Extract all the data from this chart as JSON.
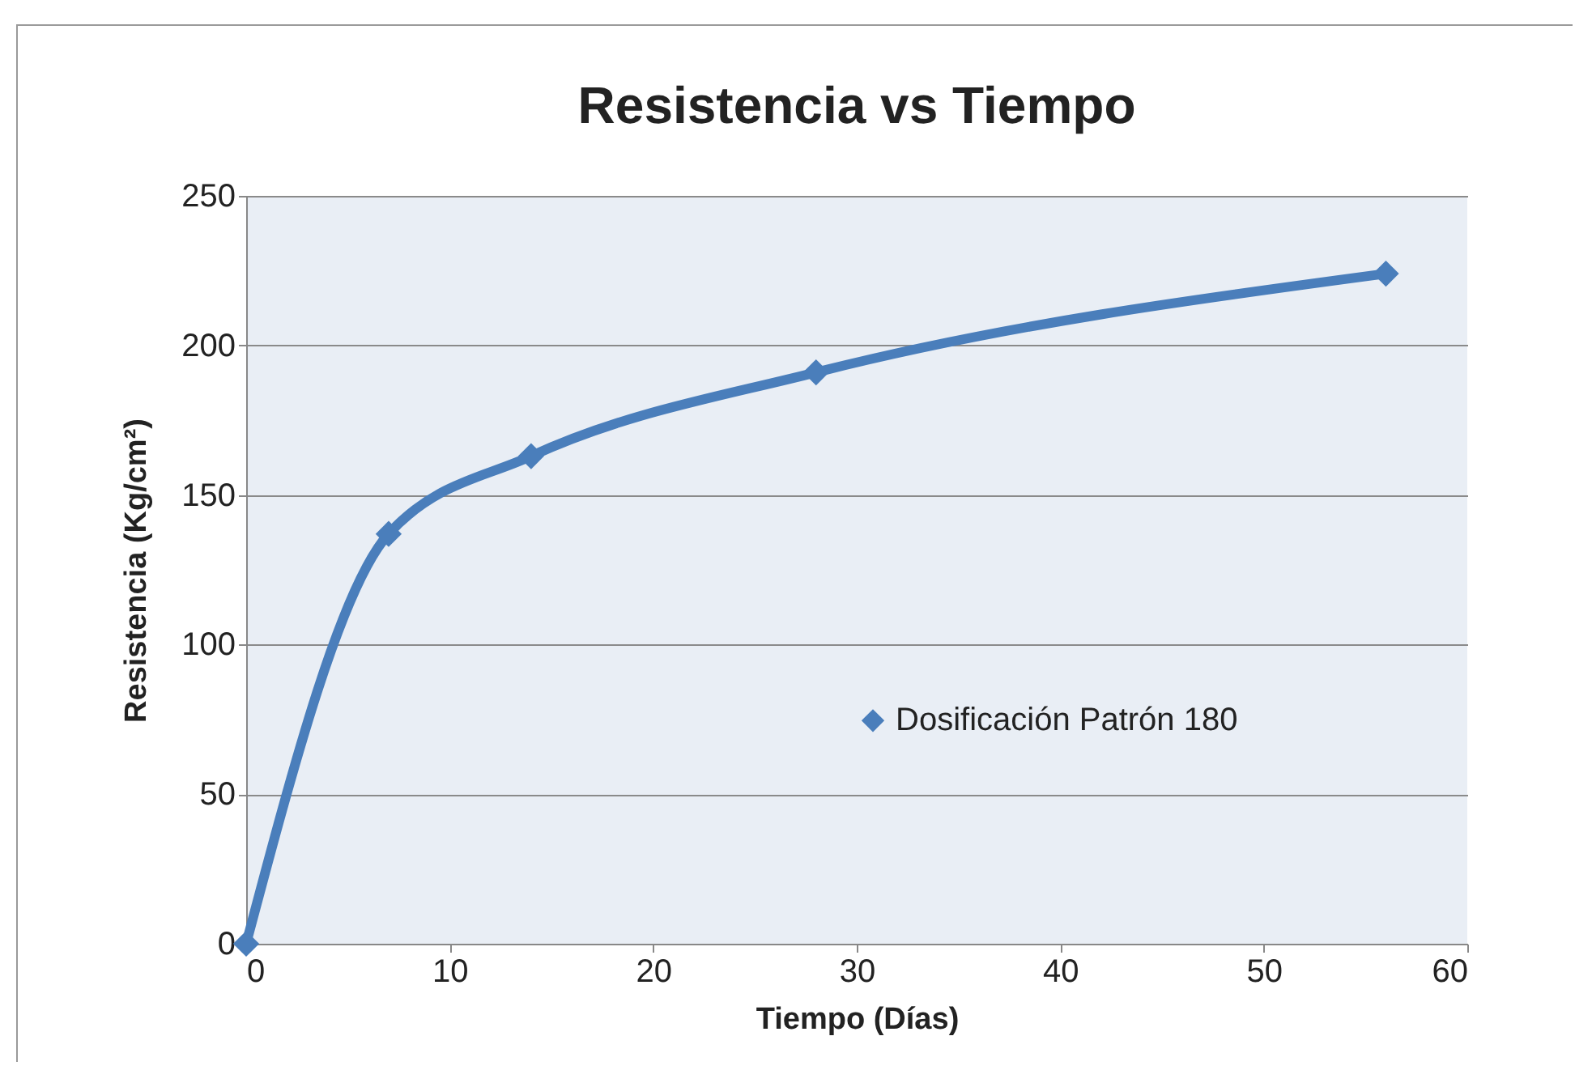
{
  "chart_data": {
    "type": "line",
    "title": "Resistencia vs Tiempo",
    "xlabel": "Tiempo (Días)",
    "ylabel": "Resistencia (Kg/cm²)",
    "x": [
      0,
      7,
      14,
      28,
      56
    ],
    "series": [
      {
        "name": "Dosificación Patrón 180",
        "color": "#4a7ebb",
        "values": [
          0,
          137,
          163,
          191,
          224
        ]
      }
    ],
    "xlim": [
      0,
      60
    ],
    "xticks": [
      0,
      10,
      20,
      30,
      40,
      50,
      60
    ],
    "ylim": [
      0,
      250
    ],
    "yticks": [
      0,
      50,
      100,
      150,
      200,
      250
    ],
    "grid": "y",
    "legend": "right",
    "marker": "diamond",
    "line_style": "solid"
  }
}
